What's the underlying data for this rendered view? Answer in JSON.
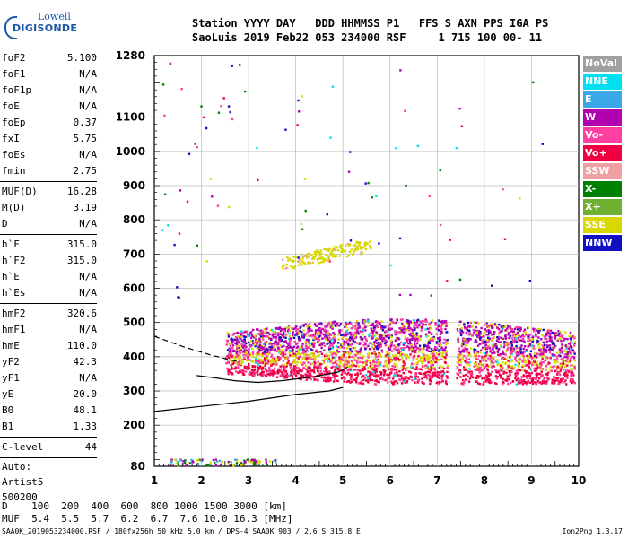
{
  "logo": {
    "line1": "Lowell",
    "line2": "DIGISONDE"
  },
  "header": {
    "line1": "Station YYYY DAY   DDD HHMMSS P1   FFS S AXN PPS IGA PS",
    "line2": "SaoLuis 2019 Feb22 053 234000 RSF     1 715 100 00- 11"
  },
  "parameters": {
    "group1": [
      {
        "label": "foF2",
        "value": "5.100"
      },
      {
        "label": "foF1",
        "value": "N/A"
      },
      {
        "label": "foF1p",
        "value": "N/A"
      },
      {
        "label": "foE",
        "value": "N/A"
      },
      {
        "label": "foEp",
        "value": "0.37"
      },
      {
        "label": "fxI",
        "value": "5.75"
      },
      {
        "label": "foEs",
        "value": "N/A"
      },
      {
        "label": "fmin",
        "value": "2.75"
      }
    ],
    "group2": [
      {
        "label": "MUF(D)",
        "value": "16.28"
      },
      {
        "label": "M(D)",
        "value": "3.19"
      },
      {
        "label": "D",
        "value": "N/A"
      }
    ],
    "group3": [
      {
        "label": "h`F",
        "value": "315.0"
      },
      {
        "label": "h`F2",
        "value": "315.0"
      },
      {
        "label": "h`E",
        "value": "N/A"
      },
      {
        "label": "h`Es",
        "value": "N/A"
      }
    ],
    "group4": [
      {
        "label": "hmF2",
        "value": "320.6"
      },
      {
        "label": "hmF1",
        "value": "N/A"
      },
      {
        "label": "hmE",
        "value": "110.0"
      },
      {
        "label": "yF2",
        "value": "42.3"
      },
      {
        "label": "yF1",
        "value": "N/A"
      },
      {
        "label": "yE",
        "value": "20.0"
      },
      {
        "label": "B0",
        "value": "48.1"
      },
      {
        "label": "B1",
        "value": "1.33"
      }
    ],
    "group5": [
      {
        "label": "C-level",
        "value": "44"
      }
    ],
    "auto": [
      "Auto:",
      "Artist5",
      "500200"
    ]
  },
  "legend": [
    {
      "label": "NoVal",
      "color": "#a0a0a0"
    },
    {
      "label": "NNE",
      "color": "#00e0f0"
    },
    {
      "label": "E",
      "color": "#3aa8e8"
    },
    {
      "label": "W",
      "color": "#b000b0"
    },
    {
      "label": "Vo-",
      "color": "#ff40a0"
    },
    {
      "label": "Vo+",
      "color": "#f00040"
    },
    {
      "label": "SSW",
      "color": "#f0a0a0"
    },
    {
      "label": "X-",
      "color": "#008000"
    },
    {
      "label": "X+",
      "color": "#70b030"
    },
    {
      "label": "SSE",
      "color": "#d8d800"
    },
    {
      "label": "NNW",
      "color": "#1010c0"
    }
  ],
  "chart_data": {
    "type": "scatter",
    "x_tick_labels": [
      "1",
      "2",
      "3",
      "4",
      "5",
      "6",
      "7",
      "8",
      "9",
      "10"
    ],
    "y_tick_labels": [
      "80",
      "200",
      "300",
      "400",
      "500",
      "600",
      "700",
      "800",
      "900",
      "1000",
      "1100",
      "1280"
    ],
    "xlim": [
      1,
      10
    ],
    "ylim": [
      80,
      1280
    ],
    "grid": true,
    "legend_position": "right",
    "echo_bands": [
      {
        "name": "F-layer main trace",
        "color_mix": [
          "#ff40a0",
          "#f00040",
          "#d8d800",
          "#b000b0"
        ],
        "freq_range": [
          2.5,
          9.9
        ],
        "height_range": [
          320,
          520
        ]
      },
      {
        "name": "upper trace",
        "color_mix": [
          "#d8d800"
        ],
        "freq_range": [
          3.7,
          5.6
        ],
        "height_range": [
          660,
          760
        ]
      },
      {
        "name": "low echoes",
        "color_mix": [
          "#b000b0",
          "#d8d800",
          "#3aa8e8",
          "#008000"
        ],
        "freq_range": [
          1.3,
          3.6
        ],
        "height_range": [
          80,
          100
        ]
      }
    ],
    "profile_curves": [
      {
        "name": "true-height profile",
        "style": "solid",
        "points": [
          [
            1.0,
            240
          ],
          [
            2.0,
            255
          ],
          [
            3.0,
            270
          ],
          [
            4.0,
            290
          ],
          [
            4.7,
            300
          ],
          [
            5.0,
            310
          ]
        ]
      },
      {
        "name": "profile extrapolation",
        "style": "dashed",
        "points": [
          [
            1.0,
            460
          ],
          [
            1.6,
            430
          ],
          [
            2.2,
            405
          ],
          [
            2.8,
            385
          ]
        ]
      },
      {
        "name": "model trace",
        "style": "solid",
        "points": [
          [
            1.9,
            345
          ],
          [
            2.3,
            338
          ],
          [
            2.7,
            330
          ],
          [
            3.2,
            325
          ],
          [
            3.7,
            330
          ],
          [
            4.3,
            340
          ],
          [
            4.9,
            355
          ],
          [
            5.1,
            370
          ]
        ]
      }
    ]
  },
  "bottom": {
    "d_line": "D    100  200  400  600  800 1000 1500 3000 [km]",
    "muf_line": "MUF  5.4  5.5  5.7  6.2  6.7  7.6 10.0 16.3 [MHz]"
  },
  "footer": "SAA0K_2019053234000.RSF / 180fx256h 50 kHz 5.0 km / DPS-4 SAA0K 903 / 2.6 S 315.8 E",
  "version": "Ion2Png 1.3.17"
}
